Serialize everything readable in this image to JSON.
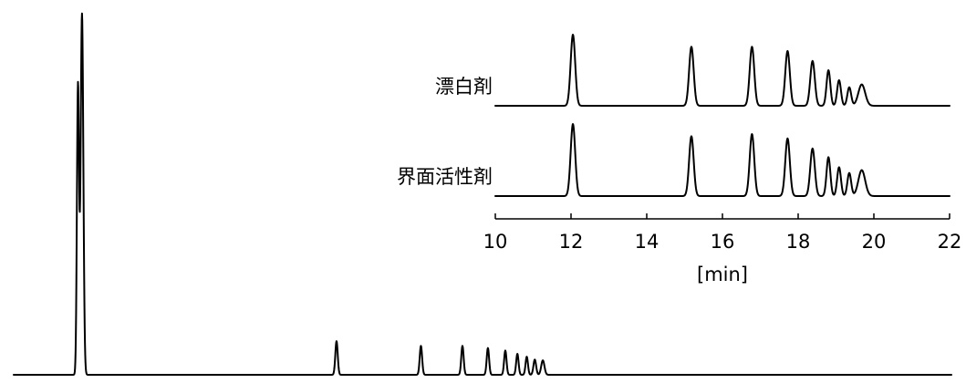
{
  "chart_data": [
    {
      "type": "line",
      "description_role": "main chromatogram",
      "series": [
        {
          "peaks_min": [
            {
              "rt": 2.55,
              "height": 1.0,
              "width": 0.05
            },
            {
              "rt": 2.4,
              "height": 0.8,
              "width": 0.04
            },
            {
              "rt": 12.05,
              "height": 0.093,
              "width": 0.045
            },
            {
              "rt": 15.2,
              "height": 0.08,
              "width": 0.045
            },
            {
              "rt": 16.75,
              "height": 0.08,
              "width": 0.045
            },
            {
              "rt": 17.7,
              "height": 0.074,
              "width": 0.045
            },
            {
              "rt": 18.35,
              "height": 0.067,
              "width": 0.045
            },
            {
              "rt": 18.8,
              "height": 0.058,
              "width": 0.045
            },
            {
              "rt": 19.15,
              "height": 0.05,
              "width": 0.045
            },
            {
              "rt": 19.45,
              "height": 0.042,
              "width": 0.05
            },
            {
              "rt": 19.75,
              "height": 0.04,
              "width": 0.06
            }
          ]
        }
      ],
      "xlim": [
        0,
        35
      ],
      "axis_visible": false
    },
    {
      "type": "line",
      "description_role": "inset",
      "xlabel": "[min]",
      "xlim": [
        10,
        22
      ],
      "xticks": [
        10,
        12,
        14,
        16,
        18,
        20,
        22
      ],
      "xtick_labels": [
        "10",
        "12",
        "14",
        "16",
        "18",
        "20",
        "22"
      ],
      "series": [
        {
          "name": "漂白剤",
          "peaks_min": [
            {
              "rt": 12.05,
              "height": 1.0,
              "width": 0.06
            },
            {
              "rt": 15.18,
              "height": 0.83,
              "width": 0.06
            },
            {
              "rt": 16.78,
              "height": 0.83,
              "width": 0.06
            },
            {
              "rt": 17.72,
              "height": 0.77,
              "width": 0.06
            },
            {
              "rt": 18.38,
              "height": 0.63,
              "width": 0.06
            },
            {
              "rt": 18.8,
              "height": 0.5,
              "width": 0.05
            },
            {
              "rt": 19.08,
              "height": 0.36,
              "width": 0.05
            },
            {
              "rt": 19.35,
              "height": 0.26,
              "width": 0.05
            },
            {
              "rt": 19.68,
              "height": 0.3,
              "width": 0.09
            }
          ]
        },
        {
          "name": "界面活性剤",
          "peaks_min": [
            {
              "rt": 12.05,
              "height": 1.0,
              "width": 0.06
            },
            {
              "rt": 15.18,
              "height": 0.83,
              "width": 0.06
            },
            {
              "rt": 16.78,
              "height": 0.86,
              "width": 0.06
            },
            {
              "rt": 17.72,
              "height": 0.8,
              "width": 0.06
            },
            {
              "rt": 18.38,
              "height": 0.66,
              "width": 0.06
            },
            {
              "rt": 18.8,
              "height": 0.54,
              "width": 0.05
            },
            {
              "rt": 19.08,
              "height": 0.4,
              "width": 0.05
            },
            {
              "rt": 19.35,
              "height": 0.32,
              "width": 0.05
            },
            {
              "rt": 19.68,
              "height": 0.36,
              "width": 0.09
            }
          ]
        }
      ]
    }
  ]
}
